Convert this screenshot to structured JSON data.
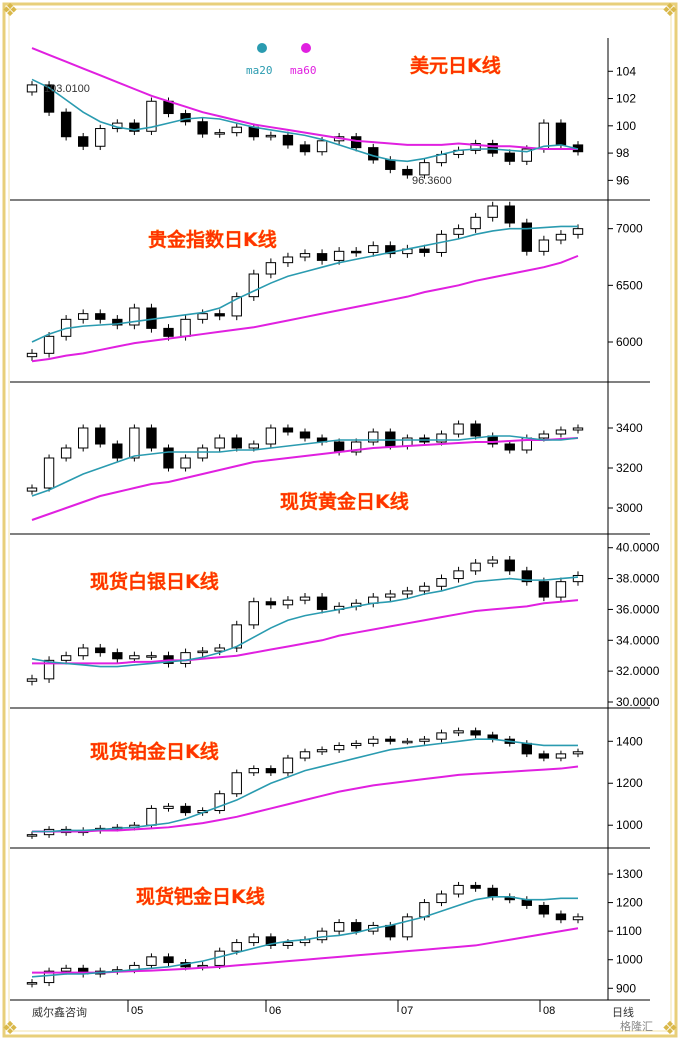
{
  "brand": {
    "source_label": "威尔鑫咨询",
    "watermark": "格隆汇",
    "bottom_right_label": "日线",
    "colors": {
      "bull": "#000000",
      "bear": "#000000",
      "ma20": "#2a9bb0",
      "ma60": "#e020e0",
      "title": "#ff3300",
      "frame": "#e8cf7a"
    }
  },
  "x_axis": {
    "month_labels": [
      "05",
      "06",
      "07",
      "08"
    ]
  },
  "legend": {
    "items": [
      {
        "name": "ma20",
        "color": "#2a9bb0"
      },
      {
        "name": "ma60",
        "color": "#e020e0"
      }
    ]
  },
  "chart_data": [
    {
      "type": "candlestick",
      "title": "美元日K线",
      "yticks": [
        "104",
        "102",
        "100",
        "98",
        "96"
      ],
      "ylim": [
        95,
        106
      ],
      "annotations": [
        "103.0100",
        "96.3600"
      ],
      "ma20": [
        103.4,
        102.8,
        101.9,
        101.0,
        100.3,
        99.9,
        99.7,
        99.9,
        100.2,
        100.5,
        100.6,
        100.5,
        100.2,
        99.9,
        99.7,
        99.5,
        99.3,
        99.0,
        98.6,
        98.2,
        97.8,
        97.5,
        97.4,
        97.6,
        97.9,
        98.2,
        98.3,
        98.3,
        98.2,
        98.1,
        98.5,
        98.6,
        98.3
      ],
      "ma60": [
        105.7,
        105.2,
        104.7,
        104.2,
        103.7,
        103.2,
        102.7,
        102.2,
        101.8,
        101.4,
        101.0,
        100.7,
        100.4,
        100.1,
        99.9,
        99.7,
        99.5,
        99.3,
        99.1,
        98.9,
        98.8,
        98.7,
        98.6,
        98.6,
        98.6,
        98.7,
        98.6,
        98.5,
        98.5,
        98.4,
        98.3,
        98.3,
        98.3
      ],
      "close": [
        103.0,
        101.0,
        99.2,
        98.5,
        99.8,
        100.2,
        99.6,
        101.8,
        100.9,
        100.3,
        99.4,
        99.5,
        99.9,
        99.2,
        99.3,
        98.6,
        98.1,
        98.9,
        99.2,
        98.4,
        97.5,
        96.8,
        96.4,
        97.3,
        97.9,
        98.2,
        98.7,
        98.0,
        97.4,
        98.3,
        100.2,
        98.6,
        98.1
      ]
    },
    {
      "type": "candlestick",
      "title": "贵金指数日K线",
      "yticks": [
        "7000",
        "6500",
        "6000"
      ],
      "ylim": [
        5700,
        7200
      ],
      "ma20": [
        6000,
        6070,
        6120,
        6140,
        6150,
        6160,
        6180,
        6200,
        6220,
        6240,
        6260,
        6300,
        6380,
        6450,
        6520,
        6580,
        6620,
        6660,
        6700,
        6730,
        6760,
        6790,
        6820,
        6850,
        6880,
        6910,
        6950,
        6980,
        7000,
        7000,
        7010,
        7020,
        7020
      ],
      "ma60": [
        5830,
        5850,
        5880,
        5900,
        5930,
        5960,
        5990,
        6010,
        6030,
        6050,
        6070,
        6090,
        6110,
        6130,
        6160,
        6190,
        6220,
        6250,
        6280,
        6310,
        6340,
        6370,
        6400,
        6440,
        6470,
        6500,
        6540,
        6570,
        6600,
        6630,
        6660,
        6700,
        6760
      ],
      "close": [
        5900,
        6050,
        6200,
        6250,
        6200,
        6150,
        6300,
        6120,
        6050,
        6200,
        6250,
        6230,
        6400,
        6600,
        6700,
        6750,
        6780,
        6720,
        6800,
        6790,
        6850,
        6780,
        6820,
        6790,
        6950,
        7000,
        7100,
        7200,
        7050,
        6800,
        6900,
        6950,
        7000
      ]
    },
    {
      "type": "candlestick",
      "title": "现货黄金日K线",
      "yticks": [
        "3400",
        "3200",
        "3000"
      ],
      "ylim": [
        2900,
        3600
      ],
      "ma20": [
        3060,
        3090,
        3130,
        3170,
        3200,
        3230,
        3260,
        3270,
        3280,
        3280,
        3280,
        3280,
        3290,
        3290,
        3300,
        3310,
        3320,
        3330,
        3340,
        3340,
        3340,
        3340,
        3340,
        3340,
        3340,
        3340,
        3350,
        3360,
        3360,
        3350,
        3340,
        3340,
        3350
      ],
      "ma60": [
        2940,
        2970,
        3000,
        3030,
        3060,
        3080,
        3100,
        3120,
        3130,
        3150,
        3170,
        3190,
        3210,
        3230,
        3240,
        3250,
        3260,
        3270,
        3280,
        3290,
        3300,
        3305,
        3310,
        3315,
        3320,
        3325,
        3330,
        3330,
        3335,
        3340,
        3340,
        3345,
        3350
      ],
      "close": [
        3100,
        3250,
        3300,
        3400,
        3320,
        3250,
        3400,
        3300,
        3200,
        3250,
        3300,
        3350,
        3300,
        3320,
        3400,
        3380,
        3350,
        3330,
        3280,
        3330,
        3380,
        3310,
        3350,
        3330,
        3370,
        3420,
        3360,
        3320,
        3290,
        3350,
        3370,
        3390,
        3400
      ]
    },
    {
      "type": "candlestick",
      "title": "现货白银日K线",
      "yticks": [
        "40.0000",
        "38.0000",
        "36.0000",
        "34.0000",
        "32.0000",
        "30.0000"
      ],
      "ylim": [
        30,
        40.5
      ],
      "ma20": [
        32.8,
        32.6,
        32.5,
        32.4,
        32.3,
        32.3,
        32.4,
        32.5,
        32.6,
        32.7,
        32.9,
        33.2,
        33.6,
        34.2,
        34.8,
        35.3,
        35.6,
        35.8,
        36.0,
        36.2,
        36.4,
        36.5,
        36.7,
        37.0,
        37.2,
        37.5,
        37.8,
        37.9,
        38.0,
        37.9,
        37.9,
        38.0,
        38.1
      ],
      "ma60": [
        32.5,
        32.5,
        32.5,
        32.5,
        32.5,
        32.5,
        32.6,
        32.6,
        32.7,
        32.7,
        32.8,
        32.9,
        33.0,
        33.2,
        33.4,
        33.6,
        33.8,
        34.0,
        34.3,
        34.5,
        34.7,
        34.9,
        35.1,
        35.3,
        35.5,
        35.7,
        35.9,
        36.0,
        36.1,
        36.2,
        36.4,
        36.5,
        36.6
      ],
      "close": [
        31.5,
        32.7,
        33.0,
        33.5,
        33.2,
        32.8,
        33.0,
        33.0,
        32.5,
        33.2,
        33.3,
        33.5,
        35.0,
        36.5,
        36.3,
        36.6,
        36.8,
        36.0,
        36.2,
        36.4,
        36.8,
        37.0,
        37.2,
        37.5,
        38.0,
        38.5,
        39.0,
        39.2,
        38.5,
        37.8,
        36.8,
        37.8,
        38.2
      ]
    },
    {
      "type": "candlestick",
      "title": "现货铂金日K线",
      "yticks": [
        "1400",
        "1200",
        "1000"
      ],
      "ylim": [
        920,
        1530
      ],
      "ma20": [
        970,
        970,
        975,
        975,
        980,
        985,
        990,
        1000,
        1010,
        1030,
        1060,
        1090,
        1120,
        1160,
        1200,
        1230,
        1260,
        1280,
        1300,
        1320,
        1340,
        1360,
        1370,
        1380,
        1390,
        1400,
        1410,
        1410,
        1400,
        1390,
        1380,
        1380,
        1380
      ],
      "ma60": [
        970,
        970,
        970,
        970,
        975,
        975,
        980,
        985,
        990,
        1000,
        1010,
        1025,
        1040,
        1060,
        1080,
        1100,
        1120,
        1140,
        1160,
        1175,
        1190,
        1200,
        1210,
        1220,
        1230,
        1240,
        1245,
        1250,
        1255,
        1260,
        1265,
        1270,
        1280
      ],
      "close": [
        955,
        980,
        965,
        975,
        985,
        990,
        1000,
        1080,
        1090,
        1060,
        1070,
        1150,
        1250,
        1270,
        1250,
        1320,
        1350,
        1360,
        1380,
        1390,
        1410,
        1400,
        1400,
        1410,
        1440,
        1450,
        1430,
        1410,
        1390,
        1340,
        1320,
        1340,
        1350
      ]
    },
    {
      "type": "candlestick",
      "title": "现货钯金日K线",
      "yticks": [
        "1300",
        "1200",
        "1100",
        "1000",
        "900"
      ],
      "ylim": [
        880,
        1370
      ],
      "ma20": [
        940,
        945,
        950,
        950,
        955,
        960,
        965,
        970,
        975,
        985,
        995,
        1010,
        1025,
        1040,
        1055,
        1065,
        1070,
        1080,
        1085,
        1095,
        1110,
        1120,
        1135,
        1150,
        1170,
        1190,
        1210,
        1220,
        1220,
        1210,
        1210,
        1215,
        1215
      ],
      "ma60": [
        955,
        955,
        955,
        955,
        955,
        958,
        960,
        962,
        965,
        968,
        972,
        975,
        980,
        985,
        990,
        995,
        1000,
        1005,
        1010,
        1015,
        1020,
        1025,
        1030,
        1035,
        1040,
        1045,
        1050,
        1060,
        1070,
        1080,
        1090,
        1100,
        1110
      ],
      "close": [
        920,
        960,
        970,
        950,
        960,
        965,
        980,
        1010,
        990,
        975,
        980,
        1030,
        1060,
        1080,
        1050,
        1060,
        1070,
        1100,
        1130,
        1100,
        1120,
        1080,
        1150,
        1200,
        1230,
        1260,
        1250,
        1220,
        1210,
        1190,
        1160,
        1140,
        1150
      ]
    }
  ]
}
